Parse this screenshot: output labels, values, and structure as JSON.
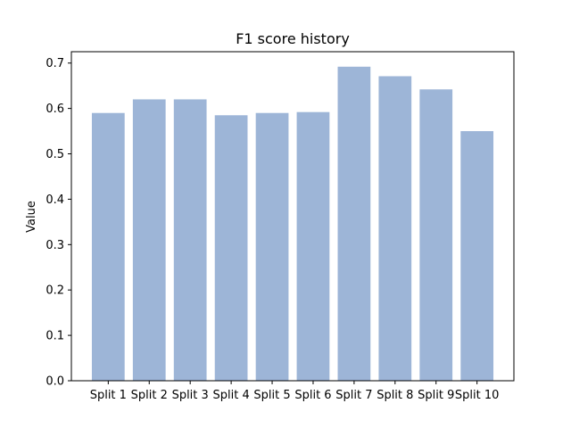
{
  "chart_data": {
    "type": "bar",
    "title": "F1 score history",
    "xlabel": "",
    "ylabel": "Value",
    "categories": [
      "Split 1",
      "Split 2",
      "Split 3",
      "Split 4",
      "Split 5",
      "Split 6",
      "Split 7",
      "Split 8",
      "Split 9",
      "Split 10"
    ],
    "values": [
      0.59,
      0.62,
      0.62,
      0.585,
      0.59,
      0.592,
      0.692,
      0.671,
      0.642,
      0.55
    ],
    "ylim": [
      0,
      0.725
    ],
    "yticks": [
      0.0,
      0.1,
      0.2,
      0.3,
      0.4,
      0.5,
      0.6,
      0.7
    ],
    "ytick_labels": [
      "0.0",
      "0.1",
      "0.2",
      "0.3",
      "0.4",
      "0.5",
      "0.6",
      "0.7"
    ],
    "bar_color": "#9db5d7",
    "grid": false,
    "legend": "none"
  }
}
